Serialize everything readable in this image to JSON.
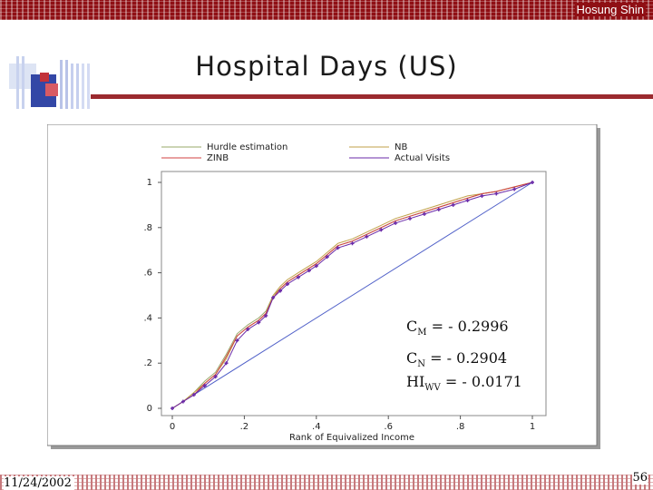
{
  "header": {
    "author": "Hosung Shin"
  },
  "slide": {
    "title": "Hospital Days (US)"
  },
  "stats": {
    "cm_sym": "C",
    "cm_sub": "M",
    "cm_val": " = - 0.2996",
    "cn_sym": "C",
    "cn_sub": "N",
    "cn_val": " = - 0.2904",
    "hi_sym": "HI",
    "hi_sub": "WV",
    "hi_val": " = - 0.0171"
  },
  "footer": {
    "date": "11/24/2002",
    "page": "56"
  },
  "colors": {
    "band": "#8f0f14",
    "hurdle": "#9aa86a",
    "zinb": "#d04040",
    "nb": "#c2a24a",
    "actual": "#6a2aa8",
    "diagonal": "#5060c8"
  },
  "chart_data": {
    "type": "line",
    "xlabel": "Rank of Equivalized Income",
    "ylabel": "",
    "xlim": [
      0,
      1
    ],
    "ylim": [
      0,
      1
    ],
    "x_ticks": [
      "0",
      ".2",
      ".4",
      ".6",
      ".8",
      "1"
    ],
    "y_ticks": [
      "0",
      ".2",
      ".4",
      ".6",
      ".8",
      "1"
    ],
    "grid": false,
    "legend_position": "top",
    "x": [
      0.0,
      0.03,
      0.06,
      0.09,
      0.12,
      0.15,
      0.18,
      0.21,
      0.24,
      0.26,
      0.28,
      0.3,
      0.32,
      0.35,
      0.38,
      0.4,
      0.43,
      0.46,
      0.5,
      0.54,
      0.58,
      0.62,
      0.66,
      0.7,
      0.74,
      0.78,
      0.82,
      0.86,
      0.9,
      0.95,
      1.0
    ],
    "series": [
      {
        "name": "Hurdle estimation",
        "values": [
          0.0,
          0.03,
          0.07,
          0.12,
          0.16,
          0.24,
          0.33,
          0.37,
          0.4,
          0.43,
          0.5,
          0.53,
          0.56,
          0.59,
          0.62,
          0.64,
          0.68,
          0.72,
          0.74,
          0.77,
          0.8,
          0.83,
          0.85,
          0.87,
          0.89,
          0.91,
          0.93,
          0.95,
          0.96,
          0.98,
          1.0
        ]
      },
      {
        "name": "NB",
        "values": [
          0.0,
          0.03,
          0.07,
          0.11,
          0.15,
          0.22,
          0.32,
          0.36,
          0.39,
          0.42,
          0.5,
          0.54,
          0.57,
          0.6,
          0.63,
          0.65,
          0.69,
          0.73,
          0.75,
          0.78,
          0.81,
          0.84,
          0.86,
          0.88,
          0.9,
          0.92,
          0.94,
          0.95,
          0.96,
          0.98,
          1.0
        ]
      },
      {
        "name": "ZINB",
        "values": [
          0.0,
          0.03,
          0.06,
          0.11,
          0.15,
          0.23,
          0.32,
          0.36,
          0.39,
          0.42,
          0.49,
          0.53,
          0.56,
          0.59,
          0.62,
          0.64,
          0.68,
          0.72,
          0.74,
          0.77,
          0.8,
          0.83,
          0.85,
          0.87,
          0.89,
          0.91,
          0.93,
          0.95,
          0.96,
          0.98,
          1.0
        ]
      },
      {
        "name": "Actual Visits",
        "values": [
          0.0,
          0.03,
          0.06,
          0.1,
          0.14,
          0.2,
          0.3,
          0.35,
          0.38,
          0.41,
          0.49,
          0.52,
          0.55,
          0.58,
          0.61,
          0.63,
          0.67,
          0.71,
          0.73,
          0.76,
          0.79,
          0.82,
          0.84,
          0.86,
          0.88,
          0.9,
          0.92,
          0.94,
          0.95,
          0.97,
          1.0
        ]
      }
    ],
    "reference_line": [
      [
        0,
        0
      ],
      [
        1,
        1
      ]
    ]
  }
}
